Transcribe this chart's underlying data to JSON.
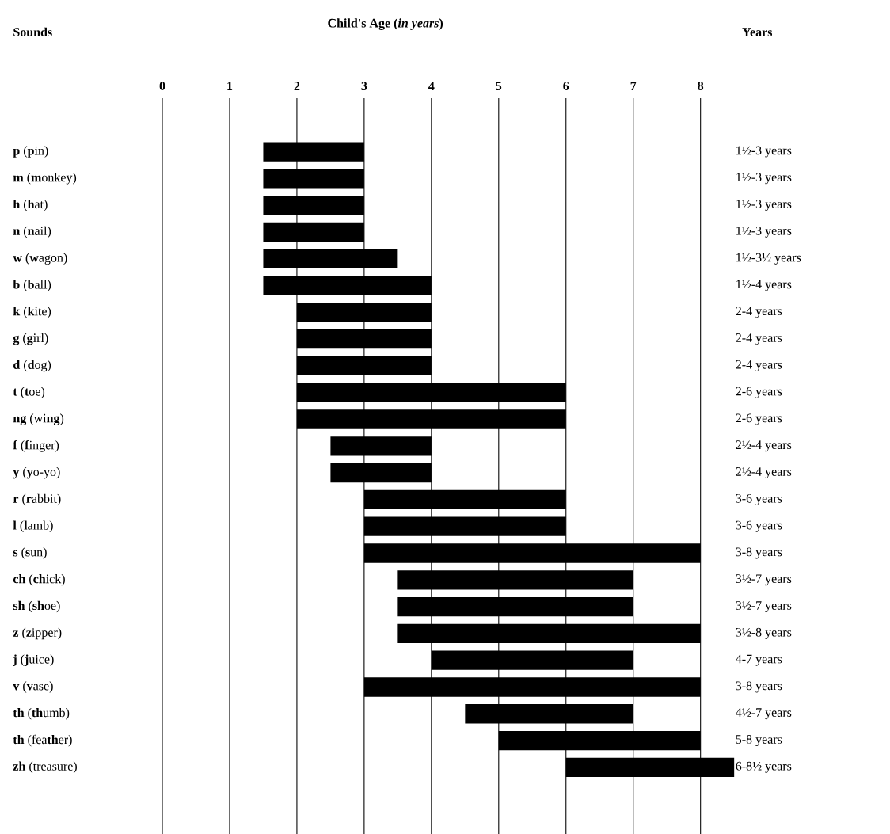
{
  "chart_data": {
    "type": "bar",
    "orientation": "horizontal",
    "title": "Child's Age (*in years*)",
    "ylabel": "Sounds",
    "annotations": [
      "Years",
      "1½-3 years",
      "1½-3 years",
      "1½-3 years",
      "1½-3 years",
      "1½-3½ years",
      "1½-4 years",
      "2-4 years",
      "2-4 years",
      "2-4 years",
      "2-6 years",
      "2-6 years",
      "2½-4 years",
      "2½-4 years",
      "3-6 years",
      "3-6 years",
      "3-8 years",
      "3½-7 years",
      "3½-7 years",
      "3½-8 years",
      "4-7 years",
      "3-8 years",
      "4½-7 years",
      "5-8 years",
      "6-8½ years"
    ],
    "categories": [
      "**p** (**p**in)",
      "**m** (**m**onkey)",
      "**h** (**h**at)",
      "**n** (**n**ail)",
      "**w** (**w**agon)",
      "**b** (**b**all)",
      "**k** (**k**ite)",
      "**g** (**g**irl)",
      "**d** (**d**og)",
      "**t** (**t**oe)",
      "**ng** (wi**ng**)",
      "**f** (**f**inger)",
      "**y** (**y**o-yo)",
      "**r** (**r**abbit)",
      "**l** (**l**amb)",
      "**s** (**s**un)",
      "**ch** (**ch**ick)",
      "**sh** (**sh**oe)",
      "**z** (**z**ipper)",
      "**j** (**j**uice)",
      "**v** (**v**ase)",
      "**th** (**th**umb)",
      "**th** (fea**th**er)",
      "**zh** (treasure)"
    ],
    "base": [
      1.5,
      1.5,
      1.5,
      1.5,
      1.5,
      1.5,
      2,
      2,
      2,
      2,
      2,
      2.5,
      2.5,
      3,
      3,
      3,
      3.5,
      3.5,
      3.5,
      4,
      3,
      4.5,
      5,
      6
    ],
    "values": [
      1.5,
      1.5,
      1.5,
      1.5,
      2,
      2.5,
      2,
      2,
      2,
      4,
      4,
      1.5,
      1.5,
      3,
      3,
      5,
      3.5,
      3.5,
      4.5,
      3,
      5,
      2.5,
      3,
      2.5
    ],
    "color": "#000000",
    "xlim": [
      0,
      8.5
    ],
    "xticks": [
      0,
      1,
      2,
      3,
      4,
      5,
      6,
      7,
      8
    ],
    "grid": "x"
  }
}
